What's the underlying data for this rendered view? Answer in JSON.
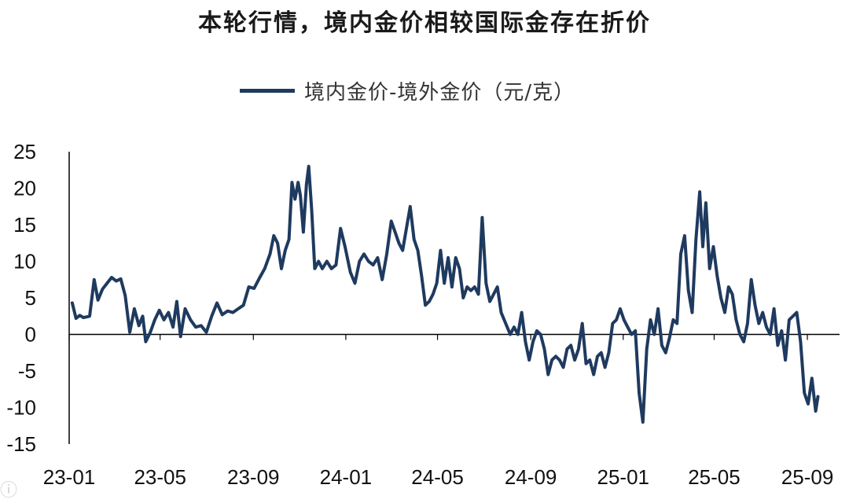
{
  "chart_data": {
    "type": "line",
    "title": "本轮行情，境内金价相较国际金存在折价",
    "legend_position": "top-center",
    "grid": false,
    "ylim": [
      -15,
      25
    ],
    "yticks": [
      25,
      20,
      15,
      10,
      5,
      0,
      -5,
      -10,
      -15
    ],
    "ytick_labels": [
      "25",
      "20",
      "15",
      "10",
      "5",
      "0",
      "-5",
      "-10",
      "-15"
    ],
    "xlim": [
      "2023-01-01",
      "2025-09-30"
    ],
    "xticks": [
      "23-01",
      "23-05",
      "23-09",
      "24-01",
      "24-05",
      "24-09",
      "25-01",
      "25-05",
      "25-09"
    ],
    "series": [
      {
        "name": "境内金价-境外金价（元/克）",
        "color": "#1f3a5f",
        "points": [
          [
            "2023-01-05",
            4.3
          ],
          [
            "2023-01-10",
            2.2
          ],
          [
            "2023-01-15",
            2.6
          ],
          [
            "2023-01-20",
            2.3
          ],
          [
            "2023-01-28",
            2.5
          ],
          [
            "2023-02-03",
            7.5
          ],
          [
            "2023-02-08",
            4.7
          ],
          [
            "2023-02-14",
            6.2
          ],
          [
            "2023-02-20",
            7.0
          ],
          [
            "2023-02-26",
            7.8
          ],
          [
            "2023-03-04",
            7.3
          ],
          [
            "2023-03-10",
            7.6
          ],
          [
            "2023-03-16",
            5.3
          ],
          [
            "2023-03-22",
            0.3
          ],
          [
            "2023-03-28",
            3.5
          ],
          [
            "2023-04-03",
            1.2
          ],
          [
            "2023-04-08",
            2.5
          ],
          [
            "2023-04-12",
            -1.0
          ],
          [
            "2023-04-18",
            0.3
          ],
          [
            "2023-04-24",
            2.0
          ],
          [
            "2023-04-30",
            3.3
          ],
          [
            "2023-05-06",
            2.0
          ],
          [
            "2023-05-12",
            3.0
          ],
          [
            "2023-05-18",
            1.0
          ],
          [
            "2023-05-23",
            4.5
          ],
          [
            "2023-05-28",
            -0.3
          ],
          [
            "2023-06-03",
            3.5
          ],
          [
            "2023-06-10",
            2.0
          ],
          [
            "2023-06-17",
            1.0
          ],
          [
            "2023-06-24",
            1.2
          ],
          [
            "2023-07-01",
            0.3
          ],
          [
            "2023-07-08",
            2.5
          ],
          [
            "2023-07-15",
            4.3
          ],
          [
            "2023-07-22",
            2.7
          ],
          [
            "2023-07-29",
            3.2
          ],
          [
            "2023-08-05",
            3.0
          ],
          [
            "2023-08-12",
            3.5
          ],
          [
            "2023-08-19",
            4.0
          ],
          [
            "2023-08-26",
            6.5
          ],
          [
            "2023-09-02",
            6.3
          ],
          [
            "2023-09-09",
            7.7
          ],
          [
            "2023-09-16",
            9.0
          ],
          [
            "2023-09-23",
            11.0
          ],
          [
            "2023-09-28",
            13.5
          ],
          [
            "2023-10-03",
            12.5
          ],
          [
            "2023-10-08",
            9.0
          ],
          [
            "2023-10-13",
            11.5
          ],
          [
            "2023-10-18",
            13.0
          ],
          [
            "2023-10-22",
            20.8
          ],
          [
            "2023-10-26",
            18.5
          ],
          [
            "2023-10-30",
            20.8
          ],
          [
            "2023-11-02",
            19.0
          ],
          [
            "2023-11-06",
            14.0
          ],
          [
            "2023-11-10",
            20.5
          ],
          [
            "2023-11-13",
            23.0
          ],
          [
            "2023-11-17",
            17.0
          ],
          [
            "2023-11-21",
            9.0
          ],
          [
            "2023-11-26",
            10.0
          ],
          [
            "2023-12-01",
            9.0
          ],
          [
            "2023-12-07",
            10.0
          ],
          [
            "2023-12-13",
            9.0
          ],
          [
            "2023-12-19",
            9.5
          ],
          [
            "2023-12-25",
            14.5
          ],
          [
            "2023-12-31",
            12.0
          ],
          [
            "2024-01-07",
            8.5
          ],
          [
            "2024-01-13",
            7.0
          ],
          [
            "2024-01-19",
            10.0
          ],
          [
            "2024-01-25",
            11.0
          ],
          [
            "2024-01-31",
            10.0
          ],
          [
            "2024-02-06",
            9.5
          ],
          [
            "2024-02-12",
            10.5
          ],
          [
            "2024-02-18",
            7.5
          ],
          [
            "2024-02-24",
            11.0
          ],
          [
            "2024-03-01",
            15.5
          ],
          [
            "2024-03-06",
            14.0
          ],
          [
            "2024-03-11",
            12.5
          ],
          [
            "2024-03-16",
            11.5
          ],
          [
            "2024-03-21",
            14.5
          ],
          [
            "2024-03-26",
            17.5
          ],
          [
            "2024-03-31",
            13.0
          ],
          [
            "2024-04-05",
            11.5
          ],
          [
            "2024-04-10",
            8.0
          ],
          [
            "2024-04-15",
            4.0
          ],
          [
            "2024-04-20",
            4.5
          ],
          [
            "2024-04-25",
            5.5
          ],
          [
            "2024-04-30",
            7.0
          ],
          [
            "2024-05-05",
            11.5
          ],
          [
            "2024-05-10",
            7.0
          ],
          [
            "2024-05-15",
            10.5
          ],
          [
            "2024-05-20",
            6.5
          ],
          [
            "2024-05-25",
            10.5
          ],
          [
            "2024-05-30",
            9.0
          ],
          [
            "2024-06-04",
            5.0
          ],
          [
            "2024-06-09",
            6.5
          ],
          [
            "2024-06-14",
            6.0
          ],
          [
            "2024-06-19",
            6.5
          ],
          [
            "2024-06-24",
            5.5
          ],
          [
            "2024-06-29",
            16.0
          ],
          [
            "2024-07-04",
            7.0
          ],
          [
            "2024-07-09",
            4.5
          ],
          [
            "2024-07-14",
            5.5
          ],
          [
            "2024-07-19",
            6.5
          ],
          [
            "2024-07-24",
            3.0
          ],
          [
            "2024-07-30",
            1.5
          ],
          [
            "2024-08-05",
            0.0
          ],
          [
            "2024-08-10",
            1.0
          ],
          [
            "2024-08-15",
            0.0
          ],
          [
            "2024-08-20",
            3.0
          ],
          [
            "2024-08-25",
            -1.0
          ],
          [
            "2024-08-30",
            -3.5
          ],
          [
            "2024-09-04",
            -1.0
          ],
          [
            "2024-09-09",
            0.5
          ],
          [
            "2024-09-14",
            0.0
          ],
          [
            "2024-09-19",
            -2.0
          ],
          [
            "2024-09-24",
            -5.5
          ],
          [
            "2024-09-29",
            -3.5
          ],
          [
            "2024-10-04",
            -3.0
          ],
          [
            "2024-10-09",
            -3.5
          ],
          [
            "2024-10-14",
            -4.5
          ],
          [
            "2024-10-19",
            -2.0
          ],
          [
            "2024-10-24",
            -1.5
          ],
          [
            "2024-10-29",
            -3.5
          ],
          [
            "2024-11-03",
            -2.0
          ],
          [
            "2024-11-08",
            1.5
          ],
          [
            "2024-11-13",
            -4.0
          ],
          [
            "2024-11-18",
            -3.5
          ],
          [
            "2024-11-23",
            -5.5
          ],
          [
            "2024-11-28",
            -3.0
          ],
          [
            "2024-12-03",
            -2.5
          ],
          [
            "2024-12-08",
            -4.5
          ],
          [
            "2024-12-13",
            -2.5
          ],
          [
            "2024-12-18",
            1.5
          ],
          [
            "2024-12-23",
            2.0
          ],
          [
            "2024-12-28",
            3.5
          ],
          [
            "2025-01-02",
            2.0
          ],
          [
            "2025-01-07",
            1.0
          ],
          [
            "2025-01-12",
            0.0
          ],
          [
            "2025-01-17",
            0.5
          ],
          [
            "2025-01-22",
            -8.0
          ],
          [
            "2025-01-27",
            -12.0
          ],
          [
            "2025-02-01",
            -2.0
          ],
          [
            "2025-02-06",
            2.0
          ],
          [
            "2025-02-11",
            0.0
          ],
          [
            "2025-02-16",
            3.5
          ],
          [
            "2025-02-21",
            -1.5
          ],
          [
            "2025-02-26",
            -2.5
          ],
          [
            "2025-03-03",
            -0.5
          ],
          [
            "2025-03-08",
            2.0
          ],
          [
            "2025-03-13",
            1.5
          ],
          [
            "2025-03-18",
            11.0
          ],
          [
            "2025-03-23",
            13.5
          ],
          [
            "2025-03-28",
            6.0
          ],
          [
            "2025-04-02",
            3.0
          ],
          [
            "2025-04-07",
            13.0
          ],
          [
            "2025-04-12",
            19.5
          ],
          [
            "2025-04-16",
            12.0
          ],
          [
            "2025-04-20",
            18.0
          ],
          [
            "2025-04-25",
            9.0
          ],
          [
            "2025-04-30",
            12.0
          ],
          [
            "2025-05-05",
            8.0
          ],
          [
            "2025-05-10",
            5.0
          ],
          [
            "2025-05-15",
            3.0
          ],
          [
            "2025-05-20",
            6.5
          ],
          [
            "2025-05-25",
            5.5
          ],
          [
            "2025-05-30",
            2.0
          ],
          [
            "2025-06-04",
            0.0
          ],
          [
            "2025-06-09",
            -1.0
          ],
          [
            "2025-06-14",
            1.5
          ],
          [
            "2025-06-19",
            7.5
          ],
          [
            "2025-06-24",
            4.0
          ],
          [
            "2025-06-29",
            1.5
          ],
          [
            "2025-07-04",
            3.0
          ],
          [
            "2025-07-09",
            1.0
          ],
          [
            "2025-07-14",
            0.0
          ],
          [
            "2025-07-19",
            3.5
          ],
          [
            "2025-07-24",
            -1.5
          ],
          [
            "2025-07-29",
            0.5
          ],
          [
            "2025-08-03",
            -3.5
          ],
          [
            "2025-08-08",
            2.0
          ],
          [
            "2025-08-13",
            2.5
          ],
          [
            "2025-08-18",
            3.0
          ],
          [
            "2025-08-23",
            -1.0
          ],
          [
            "2025-08-28",
            -8.0
          ],
          [
            "2025-09-02",
            -9.5
          ],
          [
            "2025-09-07",
            -6.0
          ],
          [
            "2025-09-12",
            -10.5
          ],
          [
            "2025-09-15",
            -8.5
          ]
        ]
      }
    ]
  }
}
